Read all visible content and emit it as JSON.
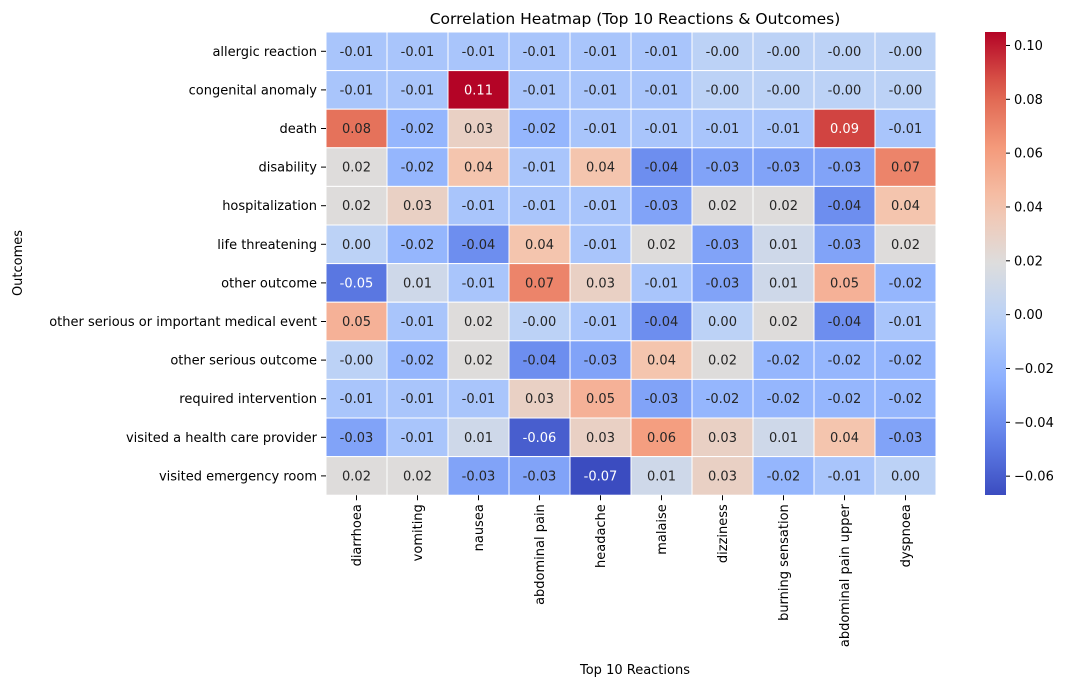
{
  "chart_data": {
    "type": "heatmap",
    "title": "Correlation Heatmap (Top 10 Reactions & Outcomes)",
    "xlabel": "Top 10 Reactions",
    "ylabel": "Outcomes",
    "x_categories": [
      "diarrhoea",
      "vomiting",
      "nausea",
      "abdominal pain",
      "headache",
      "malaise",
      "dizziness",
      "burning sensation",
      "abdominal pain upper",
      "dyspnoea"
    ],
    "y_categories": [
      "allergic reaction",
      "congenital anomaly",
      "death",
      "disability",
      "hospitalization",
      "life threatening",
      "other outcome",
      "other serious or important medical event",
      "other serious outcome",
      "required intervention",
      "visited a health care provider",
      "visited emergency room"
    ],
    "values": [
      [
        -0.01,
        -0.01,
        -0.01,
        -0.01,
        -0.01,
        -0.01,
        0.0,
        0.0,
        0.0,
        0.0
      ],
      [
        -0.01,
        -0.01,
        0.105,
        -0.01,
        -0.01,
        -0.01,
        0.0,
        0.0,
        0.0,
        0.0
      ],
      [
        0.077,
        -0.02,
        0.03,
        -0.02,
        -0.01,
        -0.01,
        -0.01,
        -0.01,
        0.09,
        -0.01
      ],
      [
        0.02,
        -0.02,
        0.04,
        -0.01,
        0.04,
        -0.04,
        -0.03,
        -0.03,
        -0.03,
        0.07
      ],
      [
        0.02,
        0.03,
        -0.01,
        -0.01,
        -0.01,
        -0.03,
        0.02,
        0.02,
        -0.04,
        0.04
      ],
      [
        0.0,
        -0.02,
        -0.04,
        0.04,
        -0.01,
        0.02,
        -0.03,
        0.01,
        -0.03,
        0.02
      ],
      [
        -0.05,
        0.01,
        -0.01,
        0.07,
        0.03,
        -0.01,
        -0.03,
        0.01,
        0.05,
        -0.02
      ],
      [
        0.05,
        -0.01,
        0.02,
        0.0,
        -0.01,
        -0.04,
        0.0,
        0.02,
        -0.04,
        -0.01
      ],
      [
        0.0,
        -0.02,
        0.02,
        -0.04,
        -0.03,
        0.04,
        0.02,
        -0.02,
        -0.02,
        -0.02
      ],
      [
        -0.01,
        -0.01,
        -0.01,
        0.03,
        0.05,
        -0.03,
        -0.02,
        -0.02,
        -0.02,
        -0.02
      ],
      [
        -0.03,
        -0.01,
        0.01,
        -0.06,
        0.03,
        0.06,
        0.03,
        0.01,
        0.04,
        -0.03
      ],
      [
        0.02,
        0.02,
        -0.03,
        -0.03,
        -0.067,
        0.01,
        0.03,
        -0.02,
        -0.01,
        0.0
      ]
    ],
    "labels": [
      [
        "-0.01",
        "-0.01",
        "-0.01",
        "-0.01",
        "-0.01",
        "-0.01",
        "-0.00",
        "-0.00",
        "-0.00",
        "-0.00"
      ],
      [
        "-0.01",
        "-0.01",
        "0.11",
        "-0.01",
        "-0.01",
        "-0.01",
        "-0.00",
        "-0.00",
        "-0.00",
        "-0.00"
      ],
      [
        "0.08",
        "-0.02",
        "0.03",
        "-0.02",
        "-0.01",
        "-0.01",
        "-0.01",
        "-0.01",
        "0.09",
        "-0.01"
      ],
      [
        "0.02",
        "-0.02",
        "0.04",
        "-0.01",
        "0.04",
        "-0.04",
        "-0.03",
        "-0.03",
        "-0.03",
        "0.07"
      ],
      [
        "0.02",
        "0.03",
        "-0.01",
        "-0.01",
        "-0.01",
        "-0.03",
        "0.02",
        "0.02",
        "-0.04",
        "0.04"
      ],
      [
        "0.00",
        "-0.02",
        "-0.04",
        "0.04",
        "-0.01",
        "0.02",
        "-0.03",
        "0.01",
        "-0.03",
        "0.02"
      ],
      [
        "-0.05",
        "0.01",
        "-0.01",
        "0.07",
        "0.03",
        "-0.01",
        "-0.03",
        "0.01",
        "0.05",
        "-0.02"
      ],
      [
        "0.05",
        "-0.01",
        "0.02",
        "-0.00",
        "-0.01",
        "-0.04",
        "0.00",
        "0.02",
        "-0.04",
        "-0.01"
      ],
      [
        "-0.00",
        "-0.02",
        "0.02",
        "-0.04",
        "-0.03",
        "0.04",
        "0.02",
        "-0.02",
        "-0.02",
        "-0.02"
      ],
      [
        "-0.01",
        "-0.01",
        "-0.01",
        "0.03",
        "0.05",
        "-0.03",
        "-0.02",
        "-0.02",
        "-0.02",
        "-0.02"
      ],
      [
        "-0.03",
        "-0.01",
        "0.01",
        "-0.06",
        "0.03",
        "0.06",
        "0.03",
        "0.01",
        "0.04",
        "-0.03"
      ],
      [
        "0.02",
        "0.02",
        "-0.03",
        "-0.03",
        "-0.07",
        "0.01",
        "0.03",
        "-0.02",
        "-0.01",
        "0.00"
      ]
    ],
    "color_range": [
      -0.067,
      0.105
    ],
    "colormap": "coolwarm",
    "colorbar_ticks": [
      -0.06,
      -0.04,
      -0.02,
      0.0,
      0.02,
      0.04,
      0.06,
      0.08,
      0.1
    ],
    "colorbar_tick_labels": [
      "−0.06",
      "−0.04",
      "−0.02",
      "0.00",
      "0.02",
      "0.04",
      "0.06",
      "0.08",
      "0.10"
    ],
    "grid": false,
    "legend": "colorbar-right"
  }
}
